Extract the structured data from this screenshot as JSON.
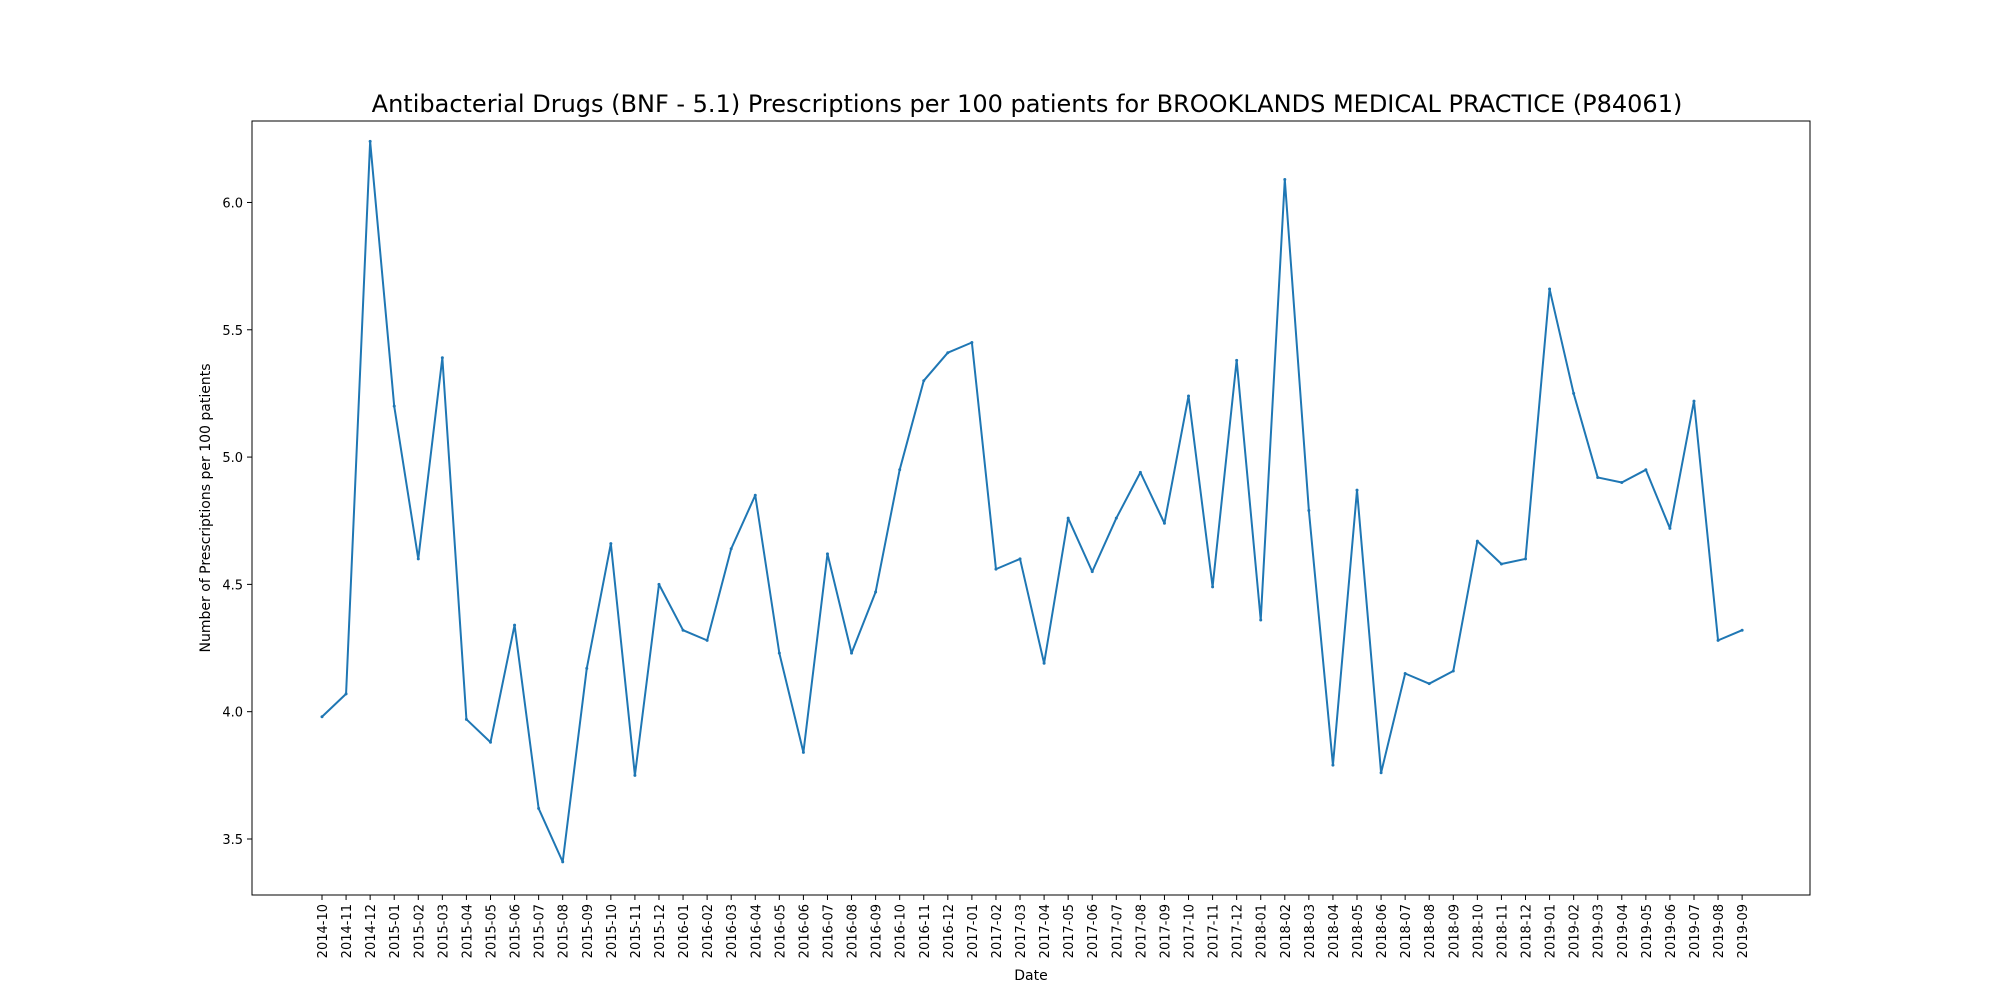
{
  "chart_data": {
    "type": "line",
    "title": "Antibacterial Drugs (BNF - 5.1) Prescriptions per 100 patients for BROOKLANDS MEDICAL PRACTICE (P84061)",
    "xlabel": "Date",
    "ylabel": "Number of Prescriptions per 100 patients",
    "ylim": [
      3.28,
      6.32
    ],
    "yticks": [
      3.5,
      4.0,
      4.5,
      5.0,
      5.5,
      6.0
    ],
    "ytick_labels": [
      "3.5",
      "4.0",
      "4.5",
      "5.0",
      "5.5",
      "6.0"
    ],
    "grid": false,
    "legend": "none",
    "line_color": "#1f77b4",
    "x": [
      "2014-10",
      "2014-11",
      "2014-12",
      "2015-01",
      "2015-02",
      "2015-03",
      "2015-04",
      "2015-05",
      "2015-06",
      "2015-07",
      "2015-08",
      "2015-09",
      "2015-10",
      "2015-11",
      "2015-12",
      "2016-01",
      "2016-02",
      "2016-03",
      "2016-04",
      "2016-05",
      "2016-06",
      "2016-07",
      "2016-08",
      "2016-09",
      "2016-10",
      "2016-11",
      "2016-12",
      "2017-01",
      "2017-02",
      "2017-03",
      "2017-04",
      "2017-05",
      "2017-06",
      "2017-07",
      "2017-08",
      "2017-09",
      "2017-10",
      "2017-11",
      "2017-12",
      "2018-01",
      "2018-02",
      "2018-03",
      "2018-04",
      "2018-05",
      "2018-06",
      "2018-07",
      "2018-08",
      "2018-09",
      "2018-10",
      "2018-11",
      "2018-12",
      "2019-01",
      "2019-02",
      "2019-03",
      "2019-04",
      "2019-05",
      "2019-06",
      "2019-07",
      "2019-08",
      "2019-09"
    ],
    "series": [
      {
        "values": [
          3.98,
          4.07,
          6.24,
          5.2,
          4.6,
          5.39,
          3.97,
          3.88,
          4.34,
          3.62,
          3.41,
          4.17,
          4.66,
          3.75,
          4.5,
          4.32,
          4.28,
          4.64,
          4.85,
          4.23,
          3.84,
          4.62,
          4.23,
          4.47,
          4.95,
          5.3,
          5.41,
          5.45,
          4.56,
          4.6,
          4.19,
          4.76,
          4.55,
          4.76,
          4.94,
          4.74,
          5.24,
          4.49,
          5.38,
          4.36,
          6.09,
          4.79,
          3.79,
          4.87,
          3.76,
          4.15,
          4.11,
          4.16,
          4.67,
          4.58,
          4.6,
          5.66,
          5.25,
          4.92,
          4.9,
          4.95,
          4.72,
          5.22,
          4.28,
          4.32
        ]
      }
    ]
  }
}
